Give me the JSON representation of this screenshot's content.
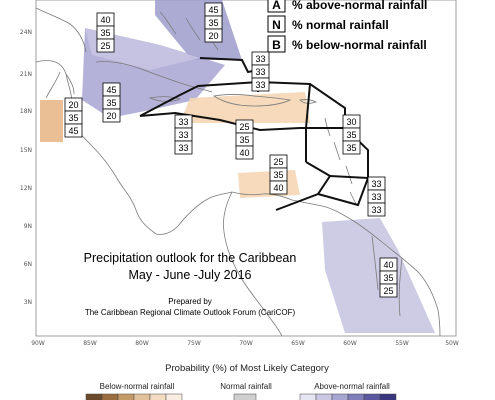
{
  "title_line1": "Precipitation outlook for the Caribbean",
  "title_line2": "May - June -July 2016",
  "credit_line1": "Prepared by",
  "credit_line2": "The Caribbean Regional Climate Outlook Forum (CariCOF)",
  "key": [
    {
      "letter": "A",
      "text": "% above-normal rainfall"
    },
    {
      "letter": "N",
      "text": "% normal rainfall"
    },
    {
      "letter": "B",
      "text": "% below-normal rainfall"
    }
  ],
  "lat_ticks": [
    "24N",
    "21N",
    "18N",
    "15N",
    "12N",
    "9N",
    "6N",
    "3N"
  ],
  "lon_ticks": [
    "90W",
    "85W",
    "80W",
    "75W",
    "70W",
    "65W",
    "60W",
    "55W",
    "50W"
  ],
  "probability_boxes": [
    {
      "A": "40",
      "N": "35",
      "B": "25"
    },
    {
      "A": "45",
      "N": "35",
      "B": "20"
    },
    {
      "A": "33",
      "N": "33",
      "B": "33"
    },
    {
      "A": "45",
      "N": "35",
      "B": "20"
    },
    {
      "A": "20",
      "N": "35",
      "B": "45"
    },
    {
      "A": "33",
      "N": "33",
      "B": "33"
    },
    {
      "A": "25",
      "N": "35",
      "B": "40"
    },
    {
      "A": "30",
      "N": "35",
      "B": "35"
    },
    {
      "A": "25",
      "N": "35",
      "B": "40"
    },
    {
      "A": "33",
      "N": "33",
      "B": "33"
    },
    {
      "A": "40",
      "N": "35",
      "B": "25"
    }
  ],
  "legend": {
    "title": "Probability (%) of Most Likely Category",
    "below_label": "Below-normal rainfall",
    "normal_label": "Normal rainfall",
    "above_label": "Above-normal rainfall"
  },
  "colors": {
    "above_normal": "#9e9ccc",
    "above_normal_light": "#c9c7e2",
    "below_normal": "#f5d6b4",
    "below_normal_strong": "#e8b482",
    "normal": "#cfcfcf",
    "land_outline": "#7a7a7a",
    "zone_outline": "#111111"
  }
}
